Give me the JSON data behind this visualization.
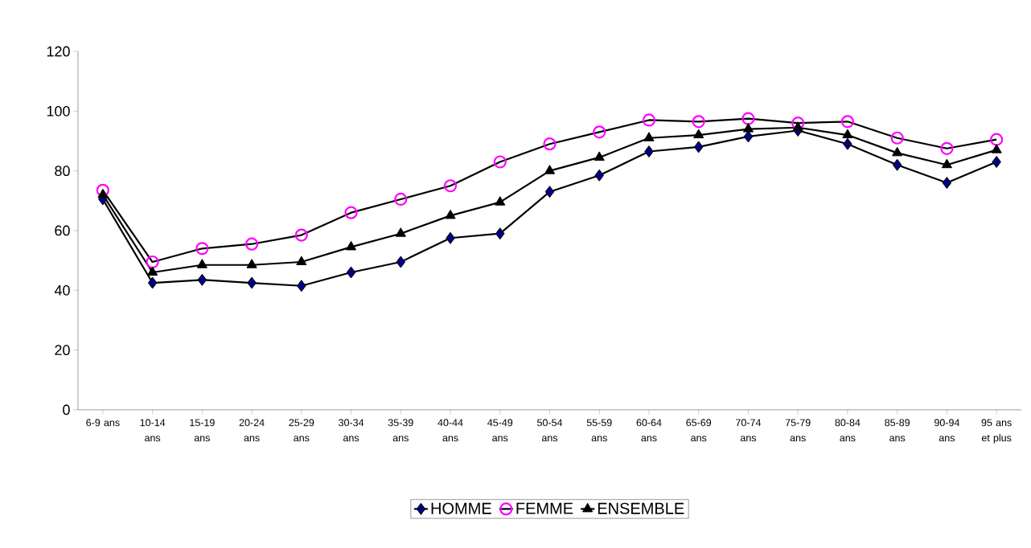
{
  "chart_data": {
    "type": "line",
    "categories": [
      "6-9 ans",
      "10-14 ans",
      "15-19 ans",
      "20-24 ans",
      "25-29 ans",
      "30-34 ans",
      "35-39 ans",
      "40-44 ans",
      "45-49 ans",
      "50-54 ans",
      "55-59 ans",
      "60-64 ans",
      "65-69 ans",
      "70-74 ans",
      "75-79 ans",
      "80-84 ans",
      "85-89 ans",
      "90-94 ans",
      "95 ans et plus"
    ],
    "series": [
      {
        "name": "HOMME",
        "color": "#000080",
        "marker": "diamond",
        "values": [
          70.5,
          42.5,
          43.5,
          42.5,
          41.5,
          46,
          49.5,
          57.5,
          59,
          73,
          78.5,
          86.5,
          88,
          91.5,
          93.5,
          89,
          82,
          76,
          83
        ]
      },
      {
        "name": "FEMME",
        "color": "#ff00ff",
        "marker": "circle",
        "values": [
          73.5,
          49.5,
          54,
          55.5,
          58.5,
          66,
          70.5,
          75,
          83,
          89,
          93,
          97,
          96.5,
          97.5,
          96,
          96.5,
          91,
          87.5,
          90.5
        ]
      },
      {
        "name": "ENSEMBLE",
        "color": "#000000",
        "marker": "triangle",
        "values": [
          72,
          46,
          48.5,
          48.5,
          49.5,
          54.5,
          59,
          65,
          69.5,
          80,
          84.5,
          91,
          92,
          94,
          94.5,
          92,
          86,
          82,
          87
        ]
      }
    ],
    "ylim": [
      0,
      120
    ],
    "yticks": [
      0,
      20,
      40,
      60,
      80,
      100,
      120
    ],
    "grid": false,
    "legend": "bottom",
    "line_style": "solid"
  }
}
